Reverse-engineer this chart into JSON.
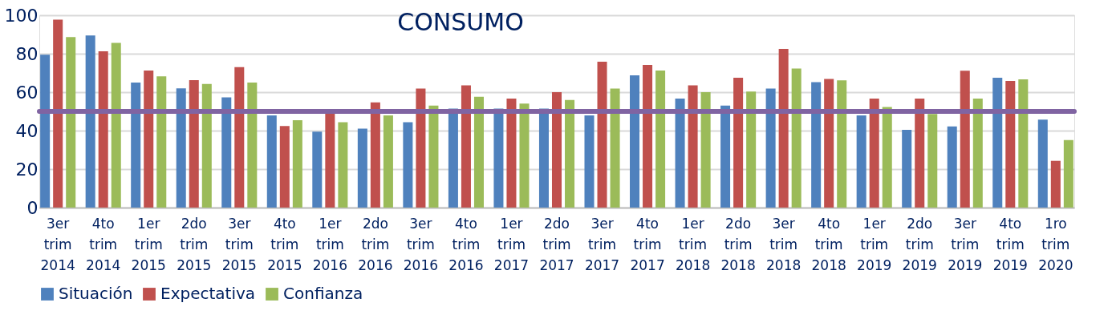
{
  "chart_data": {
    "type": "bar",
    "title": "CONSUMO",
    "categories": [
      "3er trim 2014",
      "4to trim 2014",
      "1er trim 2015",
      "2do trim 2015",
      "3er trim 2015",
      "4to trim 2015",
      "1er trim 2016",
      "2do trim 2016",
      "3er trim 2016",
      "4to trim 2016",
      "1er trim 2017",
      "2do trim 2017",
      "3er trim 2017",
      "4to trim 2017",
      "1er trim 2018",
      "2do trim 2018",
      "3er trim 2018",
      "4to trim 2018",
      "1er trim 2019",
      "2do trim 2019",
      "3er trim 2019",
      "4to trim 2019",
      "1ro trim 2020"
    ],
    "series": [
      {
        "name": "Situación",
        "color": "#4f81bd",
        "values": [
          79.5,
          89.5,
          65,
          62,
          57.3,
          47.9,
          39.5,
          41,
          44.4,
          51.5,
          51.5,
          51.5,
          47.9,
          68.8,
          56.7,
          53,
          61.9,
          65.2,
          47.9,
          40.4,
          42.2,
          67.5,
          45.7
        ]
      },
      {
        "name": "Expectativa",
        "color": "#c0504d",
        "values": [
          97.7,
          81.3,
          71.3,
          66.3,
          73,
          42.4,
          49.4,
          54.7,
          61.9,
          63.5,
          56.7,
          60,
          75.8,
          74.2,
          63.5,
          67.5,
          82.5,
          66.9,
          56.7,
          56.7,
          71.1,
          65.8,
          24.3
        ]
      },
      {
        "name": "Confianza",
        "color": "#9bbb59",
        "values": [
          88.6,
          85.6,
          68.2,
          64.3,
          65,
          45.4,
          44.4,
          47.9,
          53,
          57.6,
          54.1,
          55.9,
          61.9,
          71.3,
          60,
          60.3,
          72.3,
          66.1,
          52.3,
          48.6,
          56.7,
          66.7,
          35.1
        ]
      }
    ],
    "ylim": [
      0,
      100
    ],
    "yticks": [
      0,
      20,
      40,
      60,
      80,
      100
    ],
    "grid": "y",
    "legend": "bottom",
    "ref_lines": [
      {
        "axis": "y",
        "value": 50,
        "color": "#8064a2"
      }
    ]
  }
}
